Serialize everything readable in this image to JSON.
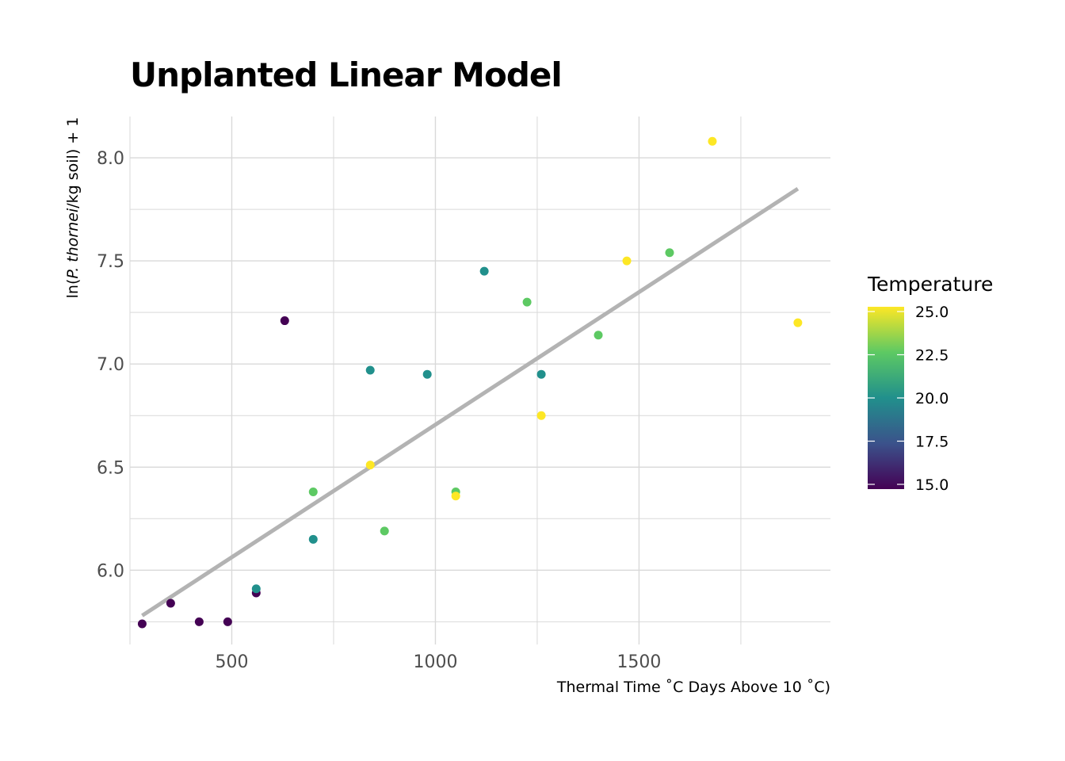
{
  "chart_data": {
    "type": "scatter",
    "title": "Unplanted Linear Model",
    "xlabel": "Thermal Time ˚C Days Above 10 ˚C)",
    "ylabel_parts": [
      "ln(",
      "P. thornei",
      "/kg soil) + 1"
    ],
    "xlim": [
      250,
      1970
    ],
    "ylim": [
      5.64,
      8.2
    ],
    "x_ticks": [
      500,
      1000,
      1500
    ],
    "x_tick_labels": [
      "500",
      "1000",
      "1500"
    ],
    "x_minor_ticks": [
      250,
      750,
      1250,
      1750
    ],
    "y_ticks": [
      6.0,
      6.5,
      7.0,
      7.5,
      8.0
    ],
    "y_tick_labels": [
      "6.0",
      "6.5",
      "7.0",
      "7.5",
      "8.0"
    ],
    "y_minor_ticks": [
      5.75,
      6.25,
      6.75,
      7.25,
      7.75
    ],
    "grid": true,
    "legend": {
      "title": "Temperature",
      "placement": "right",
      "type": "colorbar",
      "range": [
        15.0,
        25.0
      ],
      "breaks": [
        15.0,
        17.5,
        20.0,
        22.5,
        25.0
      ],
      "break_labels": [
        "15.0",
        "17.5",
        "20.0",
        "22.5",
        "25.0"
      ],
      "palette": [
        "#440154",
        "#3b528b",
        "#21908c",
        "#5dc963",
        "#fde725"
      ]
    },
    "colors": {
      "15": "#440154",
      "20": "#21908c",
      "22.5": "#5dc963",
      "25": "#fde725",
      "fit_line": "#b3b3b3",
      "grid": "#d9d9d9"
    },
    "points": [
      {
        "x": 280,
        "y": 5.74,
        "temp": 15
      },
      {
        "x": 350,
        "y": 5.84,
        "temp": 15
      },
      {
        "x": 420,
        "y": 5.75,
        "temp": 15
      },
      {
        "x": 490,
        "y": 5.75,
        "temp": 15
      },
      {
        "x": 560,
        "y": 5.89,
        "temp": 15
      },
      {
        "x": 630,
        "y": 7.21,
        "temp": 15
      },
      {
        "x": 560,
        "y": 5.91,
        "temp": 20
      },
      {
        "x": 700,
        "y": 6.15,
        "temp": 20
      },
      {
        "x": 840,
        "y": 6.97,
        "temp": 20
      },
      {
        "x": 980,
        "y": 6.95,
        "temp": 20
      },
      {
        "x": 1120,
        "y": 7.45,
        "temp": 20
      },
      {
        "x": 1260,
        "y": 6.95,
        "temp": 20
      },
      {
        "x": 700,
        "y": 6.38,
        "temp": 22.5
      },
      {
        "x": 875,
        "y": 6.19,
        "temp": 22.5
      },
      {
        "x": 1050,
        "y": 6.38,
        "temp": 22.5
      },
      {
        "x": 1225,
        "y": 7.3,
        "temp": 22.5
      },
      {
        "x": 1400,
        "y": 7.14,
        "temp": 22.5
      },
      {
        "x": 1575,
        "y": 7.54,
        "temp": 22.5
      },
      {
        "x": 840,
        "y": 6.51,
        "temp": 25
      },
      {
        "x": 1050,
        "y": 6.36,
        "temp": 25
      },
      {
        "x": 1260,
        "y": 6.75,
        "temp": 25
      },
      {
        "x": 1470,
        "y": 7.5,
        "temp": 25
      },
      {
        "x": 1680,
        "y": 8.08,
        "temp": 25
      },
      {
        "x": 1890,
        "y": 7.2,
        "temp": 25
      }
    ],
    "fit_line": {
      "x": [
        280,
        1890
      ],
      "y": [
        5.78,
        7.85
      ]
    }
  }
}
